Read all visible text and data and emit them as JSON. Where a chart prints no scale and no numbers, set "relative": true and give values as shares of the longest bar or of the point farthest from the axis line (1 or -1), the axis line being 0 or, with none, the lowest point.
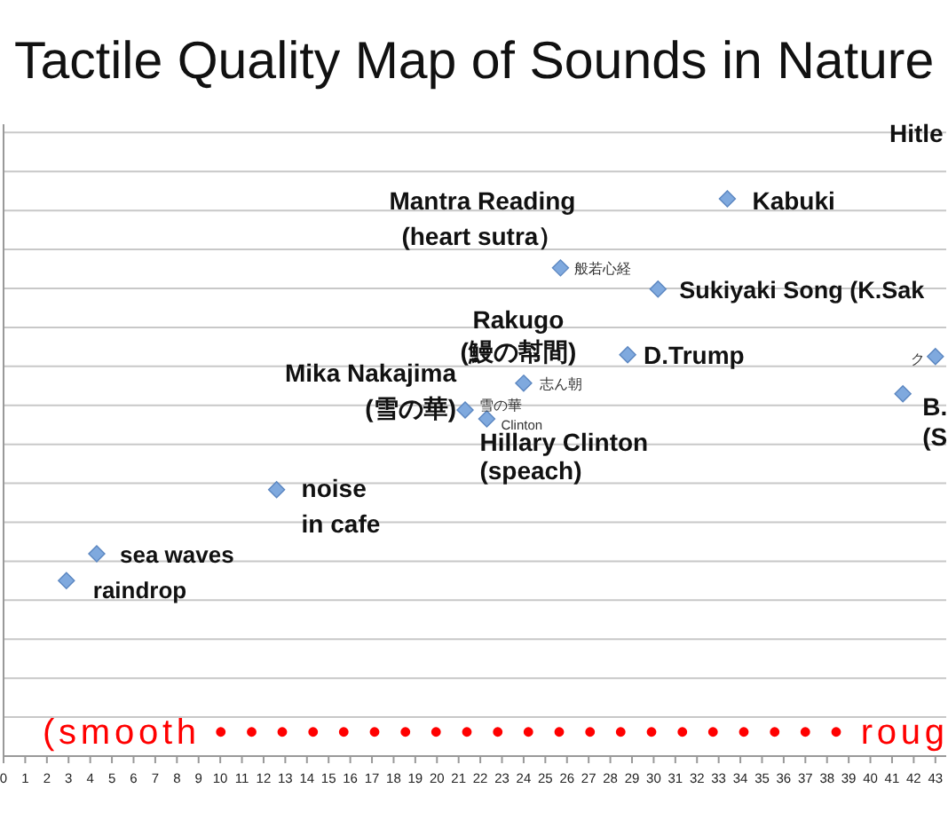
{
  "chart_data": {
    "type": "scatter",
    "title": "Tactile Quality Map of Sounds in Nature",
    "relative": true,
    "marker": "diamond",
    "grid": "y",
    "xlim": [
      0,
      43.5
    ],
    "xticks": [
      0,
      1,
      2,
      3,
      4,
      5,
      6,
      7,
      8,
      9,
      10,
      11,
      12,
      13,
      14,
      15,
      16,
      17,
      18,
      19,
      20,
      21,
      22,
      23,
      24,
      25,
      26,
      27,
      28,
      29,
      30,
      31,
      32,
      33,
      34,
      35,
      36,
      37,
      38,
      39,
      40,
      41,
      42,
      43
    ],
    "series": [
      {
        "color": "#7fa9de",
        "x": [
          2.9,
          4.3,
          12.6,
          21.3,
          22.3,
          24.0,
          25.7,
          30.2,
          28.8,
          33.4,
          43.0,
          41.5
        ],
        "values": [
          0.315,
          0.363,
          0.478,
          0.621,
          0.605,
          0.669,
          0.876,
          0.838,
          0.72,
          1,
          0.717,
          0.65
        ]
      }
    ],
    "annotations": [
      "Hitle",
      {
        "text": "Kabuki",
        "x": 33.4,
        "y": 1
      },
      {
        "text": "Mantra Reading\n(heart sutra）",
        "x": 25.7,
        "y": 0.876
      },
      {
        "text": "般若心経",
        "x": 25.7,
        "y": 0.876
      },
      {
        "text": "Sukiyaki Song (K.Sak",
        "x": 30.2,
        "y": 0.838
      },
      {
        "text": "Rakugo\n(鰻の幇間)",
        "x": 24.0,
        "y": 0.669
      },
      {
        "text": "D.Trump",
        "x": 28.8,
        "y": 0.72
      },
      {
        "text": "志ん朝",
        "x": 24.0,
        "y": 0.669
      },
      {
        "text": "Mika Nakajima\n(雪の華)",
        "x": 21.3,
        "y": 0.621
      },
      {
        "text": "雪の華",
        "x": 21.3,
        "y": 0.621
      },
      {
        "text": "Clinton",
        "x": 22.3,
        "y": 0.605
      },
      {
        "text": "Hillary Clinton\n(speach)",
        "x": 22.3,
        "y": 0.605
      },
      {
        "text": "ク",
        "x": 43.0,
        "y": 0.717
      },
      {
        "text": "B.\n(S",
        "x": 41.5,
        "y": 0.65
      },
      {
        "text": "noise\nin cafe",
        "x": 12.6,
        "y": 0.478
      },
      {
        "text": "sea waves",
        "x": 4.3,
        "y": 0.363
      },
      {
        "text": "raindrop",
        "x": 2.9,
        "y": 0.315
      },
      "(smooth • • • • • • • • • • • • • • • • • • • • • roug"
    ]
  }
}
